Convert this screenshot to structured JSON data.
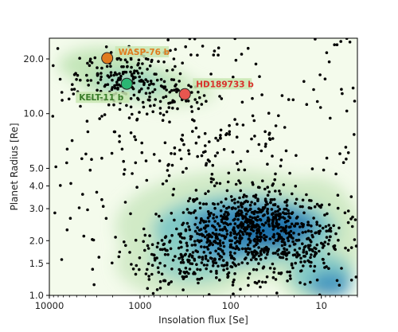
{
  "chart_data": {
    "type": "scatter",
    "title": "",
    "xlabel": "Insolation flux [Se]",
    "ylabel": "Planet Radius [Re]",
    "x_scale": "log",
    "y_scale": "log",
    "x_reversed": true,
    "xlim": [
      10000,
      4
    ],
    "ylim": [
      1.0,
      26
    ],
    "xticks": [
      {
        "value": 10000,
        "label": "10000"
      },
      {
        "value": 1000,
        "label": "1000"
      },
      {
        "value": 100,
        "label": "100"
      },
      {
        "value": 10,
        "label": "10"
      }
    ],
    "yticks": [
      {
        "value": 1.0,
        "label": "1.0"
      },
      {
        "value": 1.5,
        "label": "1.5"
      },
      {
        "value": 2.0,
        "label": "2.0"
      },
      {
        "value": 3.0,
        "label": "3.0"
      },
      {
        "value": 4.0,
        "label": "4.0"
      },
      {
        "value": 5.0,
        "label": "5.0"
      },
      {
        "value": 10.0,
        "label": "10.0"
      },
      {
        "value": 20.0,
        "label": "20.0"
      }
    ],
    "density_regions": [
      {
        "region": "hot-jupiters",
        "center": [
          1300,
          15.0
        ],
        "spread": [
          0.42,
          0.12
        ],
        "strength": 0.55
      },
      {
        "region": "super-earths-sub-neptunes",
        "center": [
          60,
          2.3
        ],
        "spread": [
          0.55,
          0.14
        ],
        "strength": 1.0
      }
    ],
    "background_points": {
      "count": 1450,
      "distribution": "follows density regions plus sparse scatter"
    },
    "highlighted": [
      {
        "name": "WASP-76 b",
        "x": 2300,
        "y": 20.2,
        "color": "#e07b1e",
        "label_color": "#e07b1e"
      },
      {
        "name": "KELT-11 b",
        "x": 1400,
        "y": 14.6,
        "color": "#2bb673",
        "label_color": "#3a7d2a"
      },
      {
        "name": "HD189733 b",
        "x": 320,
        "y": 12.8,
        "color": "#e8564f",
        "label_color": "#d9302b"
      }
    ],
    "grid": false,
    "legend": "none"
  }
}
